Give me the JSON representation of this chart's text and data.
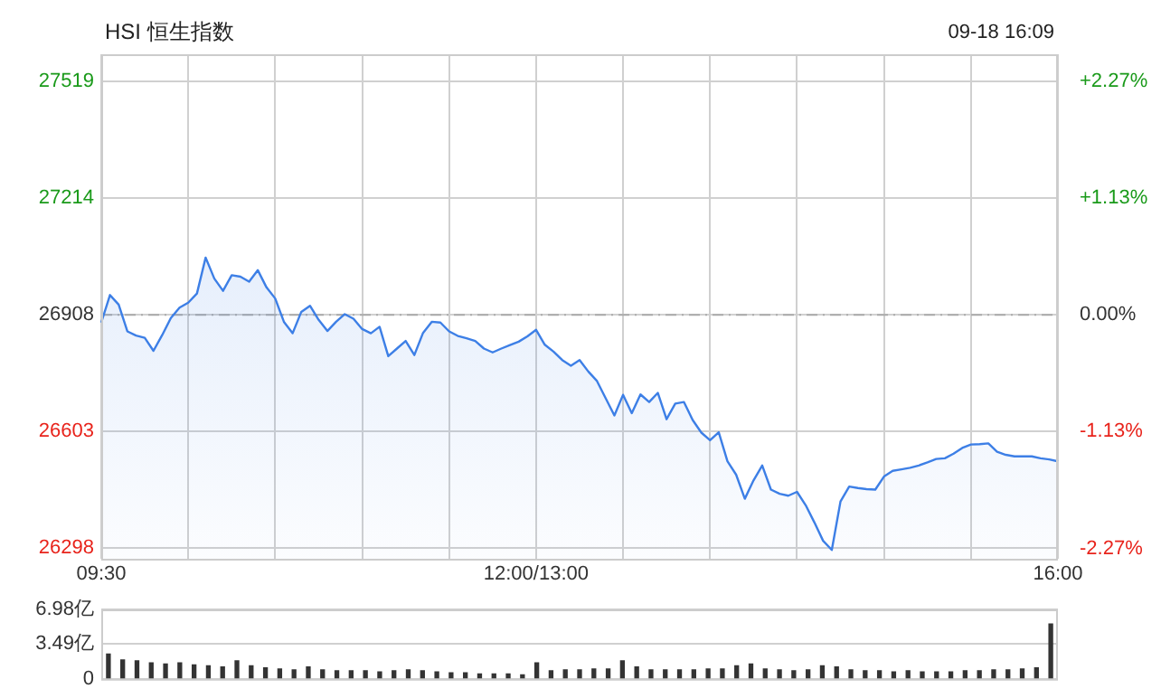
{
  "chart_data": [
    {
      "type": "area",
      "title": "HSI 恒生指数",
      "annotations": [
        "09-18 16:09"
      ],
      "color": "#3d7fe6",
      "categories": [
        "09:30",
        null,
        null,
        null,
        null,
        null,
        null,
        null,
        null,
        null,
        null,
        null,
        null,
        null,
        null,
        null,
        null,
        null,
        null,
        null,
        null,
        null,
        null,
        null,
        null,
        null,
        null,
        null,
        null,
        null,
        null,
        null,
        null,
        null,
        null,
        null,
        null,
        null,
        null,
        null,
        null,
        null,
        null,
        null,
        null,
        null,
        null,
        null,
        null,
        null,
        "12:00/13:00",
        null,
        null,
        null,
        null,
        null,
        null,
        null,
        null,
        null,
        null,
        null,
        null,
        null,
        null,
        null,
        null,
        null,
        null,
        null,
        null,
        null,
        null,
        null,
        null,
        null,
        null,
        null,
        null,
        null,
        null,
        null,
        null,
        null,
        null,
        null,
        null,
        null,
        null,
        null,
        null,
        null,
        null,
        null,
        null,
        null,
        null,
        null,
        null,
        null,
        null,
        null,
        null,
        null,
        null,
        null,
        null,
        null,
        null,
        null,
        "16:00"
      ],
      "values": [
        26888,
        26960,
        26935,
        26865,
        26854,
        26848,
        26814,
        26855,
        26900,
        26927,
        26940,
        26964,
        27058,
        27003,
        26971,
        27012,
        27008,
        26995,
        27025,
        26980,
        26951,
        26890,
        26860,
        26916,
        26932,
        26895,
        26866,
        26890,
        26910,
        26898,
        26871,
        26860,
        26877,
        26800,
        26820,
        26840,
        26803,
        26861,
        26890,
        26888,
        26865,
        26853,
        26847,
        26840,
        26820,
        26810,
        26820,
        26829,
        26838,
        26852,
        26869,
        26830,
        26812,
        26790,
        26775,
        26790,
        26760,
        26735,
        26690,
        26645,
        26699,
        26651,
        26700,
        26680,
        26704,
        26635,
        26676,
        26680,
        26633,
        26600,
        26580,
        26601,
        26525,
        26490,
        26427,
        26475,
        26514,
        26451,
        26440,
        26435,
        26445,
        26410,
        26365,
        26317,
        26293,
        26420,
        26459,
        26455,
        26452,
        26451,
        26485,
        26500,
        26504,
        26508,
        26514,
        26522,
        26531,
        26533,
        26545,
        26560,
        26569,
        26570,
        26572,
        26550,
        26542,
        26538,
        26538,
        26538,
        26533,
        26530,
        26525
      ],
      "ylim": [
        26270,
        27590
      ],
      "yticks": [
        26298,
        26603,
        26908,
        27214,
        27519
      ],
      "y2lim": [
        -2.37,
        2.53
      ],
      "y2ticks": [
        {
          "value": -2.27,
          "label": "-2.27%"
        },
        {
          "value": -1.13,
          "label": "-1.13%"
        },
        {
          "value": 0,
          "label": "0.00%"
        },
        {
          "value": 1.13,
          "label": "+1.13%"
        },
        {
          "value": 2.27,
          "label": "+2.27%"
        }
      ],
      "ref_lines": [
        {
          "axis": "y",
          "value": 26908,
          "color": "#aaaaaa",
          "line_style": "dashed"
        }
      ],
      "grid": true
    },
    {
      "type": "bar",
      "color": "#333333",
      "tick_labels": "y",
      "grid": "y",
      "categories": [
        null,
        null,
        null,
        null,
        null,
        null,
        null,
        null,
        null,
        null,
        null,
        null,
        null,
        null,
        null,
        null,
        null,
        null,
        null,
        null,
        null,
        null,
        null,
        null,
        null,
        null,
        null,
        null,
        null,
        null,
        null,
        null,
        null,
        null,
        null,
        null,
        null,
        null,
        null,
        null,
        null,
        null,
        null,
        null,
        null,
        null,
        null,
        null,
        null,
        null,
        null,
        null,
        null,
        null,
        null,
        null,
        null,
        null,
        null,
        null,
        null,
        null,
        null,
        null,
        null,
        null,
        null
      ],
      "values": [
        2.5,
        1.9,
        1.8,
        1.6,
        1.5,
        1.6,
        1.4,
        1.3,
        1.2,
        1.8,
        1.3,
        1.1,
        1.0,
        0.9,
        1.2,
        0.9,
        0.8,
        0.8,
        0.8,
        0.7,
        0.8,
        0.9,
        0.8,
        0.7,
        0.6,
        0.6,
        0.5,
        0.5,
        0.5,
        0.4,
        1.6,
        0.8,
        0.9,
        0.9,
        1.0,
        1.0,
        1.8,
        1.2,
        0.9,
        0.9,
        0.9,
        0.9,
        1.0,
        1.0,
        1.3,
        1.5,
        1.0,
        0.9,
        0.8,
        0.9,
        1.3,
        1.2,
        0.9,
        0.8,
        0.8,
        0.7,
        0.8,
        0.7,
        0.7,
        0.7,
        0.8,
        0.8,
        0.9,
        0.9,
        1.0,
        1.1,
        5.5
      ],
      "ylim": [
        0,
        6.98
      ],
      "yticks": [
        {
          "value": 0,
          "label": "0"
        },
        {
          "value": 3.49,
          "label": "3.49亿"
        },
        {
          "value": 6.98,
          "label": "6.98亿"
        }
      ]
    }
  ]
}
